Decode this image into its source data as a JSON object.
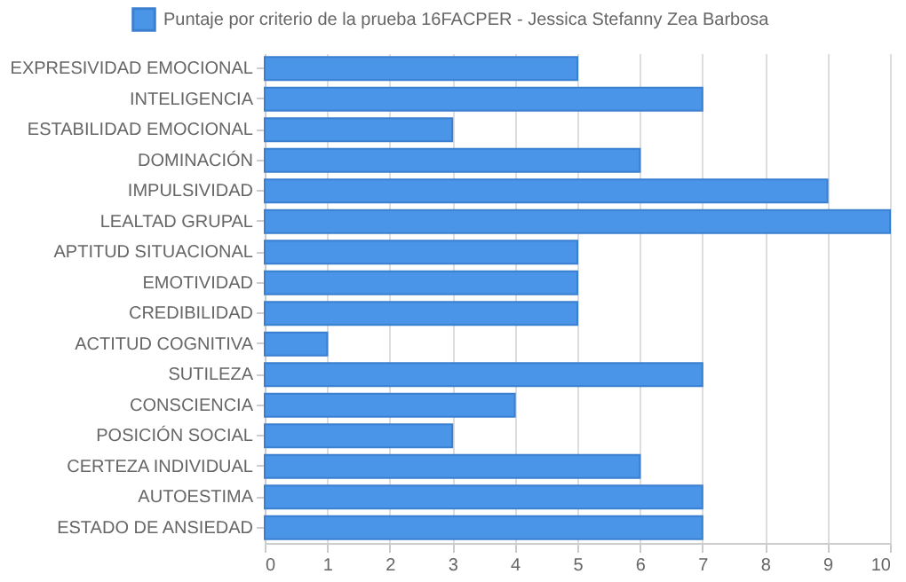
{
  "chart_data": {
    "type": "bar",
    "orientation": "horizontal",
    "categories": [
      "EXPRESIVIDAD EMOCIONAL",
      "INTELIGENCIA",
      "ESTABILIDAD EMOCIONAL",
      "DOMINACIÓN",
      "IMPULSIVIDAD",
      "LEALTAD GRUPAL",
      "APTITUD SITUACIONAL",
      "EMOTIVIDAD",
      "CREDIBILIDAD",
      "ACTITUD COGNITIVA",
      "SUTILEZA",
      "CONSCIENCIA",
      "POSICIÓN SOCIAL",
      "CERTEZA INDIVIDUAL",
      "AUTOESTIMA",
      "ESTADO DE ANSIEDAD"
    ],
    "series": [
      {
        "name": "Puntaje por criterio de la prueba 16FACPER - Jessica Stefanny Zea Barbosa",
        "color": "#4a95e8",
        "values": [
          5,
          7,
          3,
          6,
          9,
          10,
          5,
          5,
          5,
          1,
          7,
          4,
          3,
          6,
          7,
          7
        ]
      }
    ],
    "xlim": [
      0,
      10
    ],
    "xticks": [
      0,
      1,
      2,
      3,
      4,
      5,
      6,
      7,
      8,
      9,
      10
    ],
    "grid": "x",
    "legend": "top"
  }
}
